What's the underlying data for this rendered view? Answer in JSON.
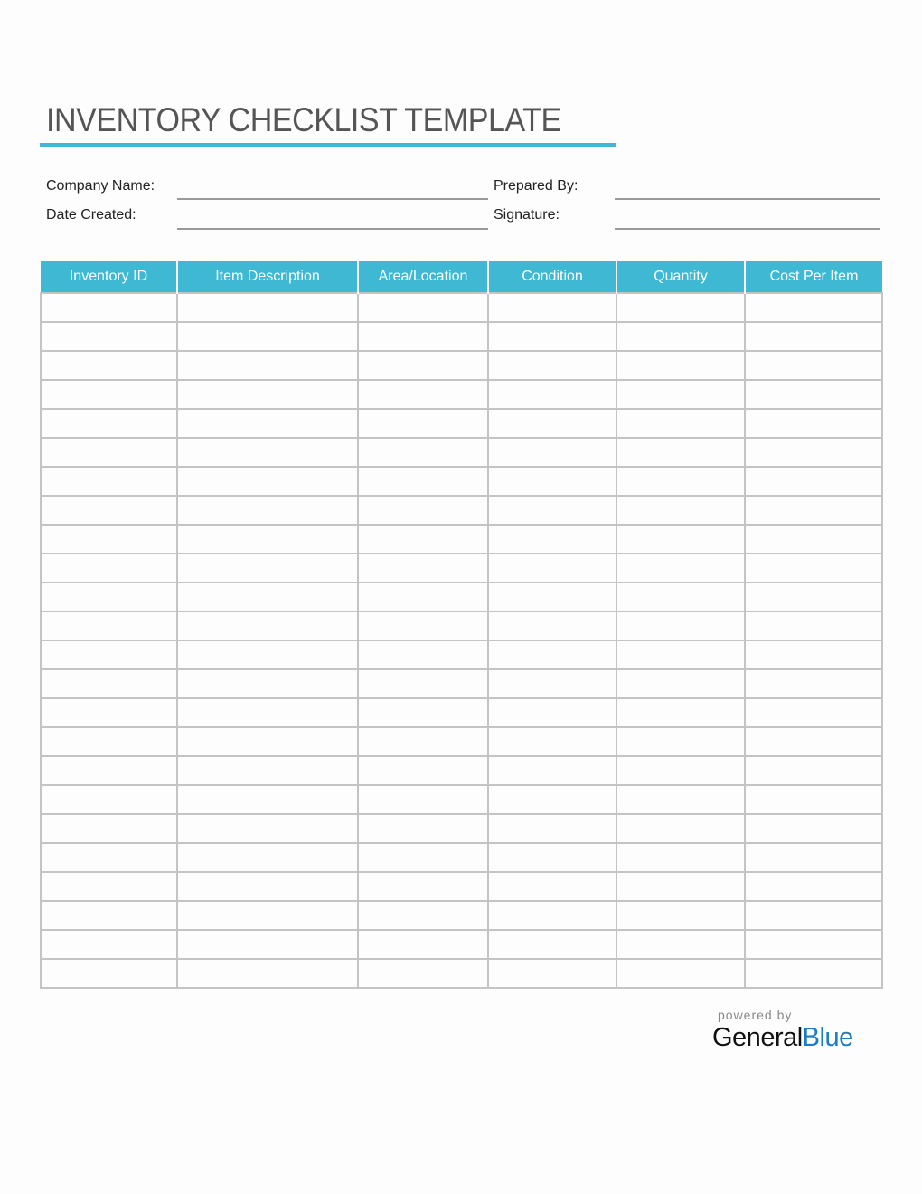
{
  "title": "INVENTORY CHECKLIST TEMPLATE",
  "fields": {
    "company_name": "Company Name:",
    "date_created": "Date Created:",
    "prepared_by": "Prepared By:",
    "signature": "Signature:"
  },
  "table": {
    "columns": [
      "Inventory ID",
      "Item Description",
      "Area/Location",
      "Condition",
      "Quantity",
      "Cost Per Item"
    ],
    "empty_rows": 24
  },
  "footer": {
    "powered_by": "powered by",
    "brand_general": "General",
    "brand_blue": "Blue"
  },
  "colors": {
    "accent": "#3fb8d4",
    "brand_blue": "#1a7cc4"
  }
}
